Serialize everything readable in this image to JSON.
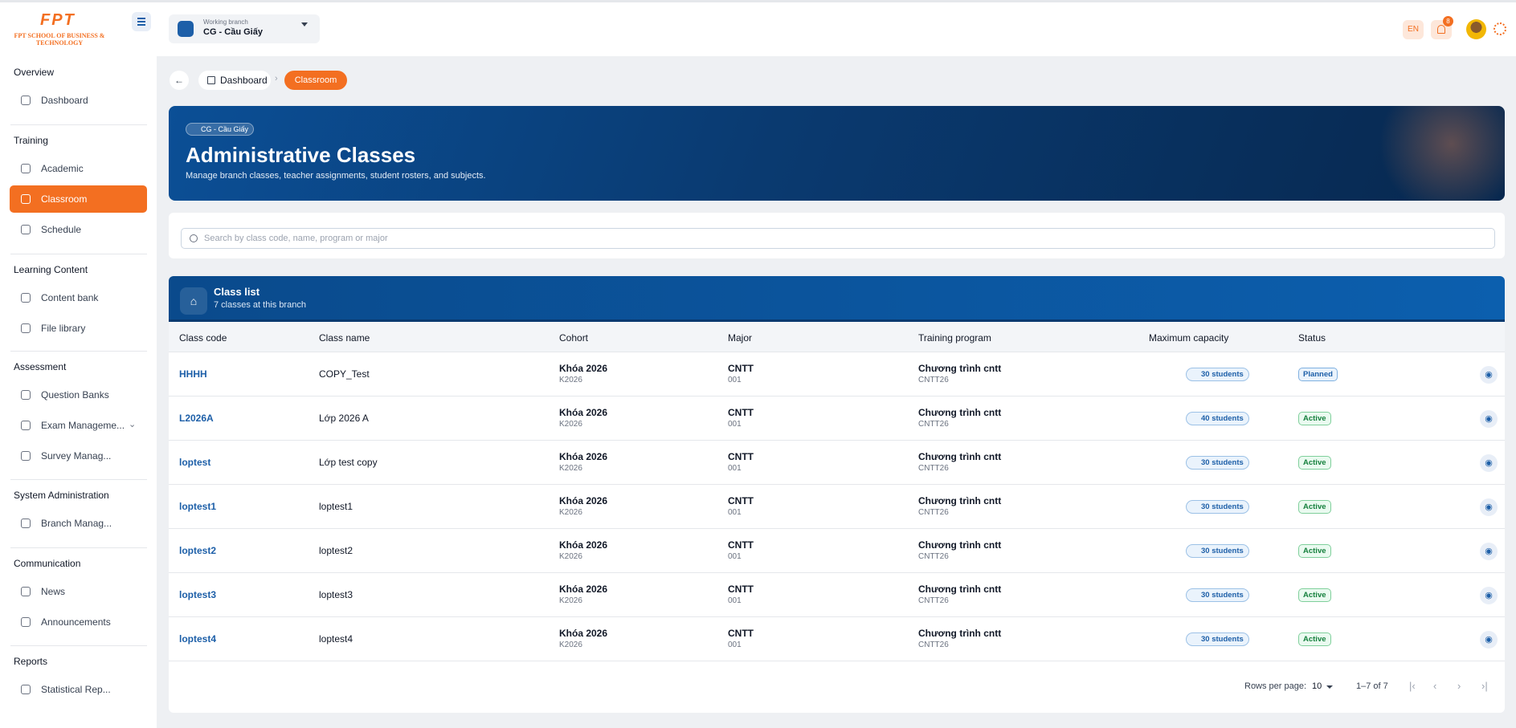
{
  "logo": {
    "mark": "FPT",
    "text": "FPT SCHOOL OF BUSINESS & TECHNOLOGY"
  },
  "sidebar": {
    "sections": [
      {
        "title": "Overview",
        "items": [
          "Dashboard"
        ]
      },
      {
        "title": "Training",
        "items": [
          "Academic",
          "Classroom",
          "Schedule"
        ]
      },
      {
        "title": "Learning Content",
        "items": [
          "Content bank",
          "File library"
        ]
      },
      {
        "title": "Assessment",
        "items": [
          "Question Banks",
          "Exam Manageme...",
          "Survey Manag..."
        ]
      },
      {
        "title": "System Administration",
        "items": [
          "Branch Manag..."
        ]
      },
      {
        "title": "Communication",
        "items": [
          "News",
          "Announcements"
        ]
      },
      {
        "title": "Reports",
        "items": [
          "Statistical Rep..."
        ]
      }
    ]
  },
  "topbar": {
    "branch_label": "Working branch",
    "branch": "CG - Cầu Giấy",
    "language": "EN",
    "notifications": 8
  },
  "breadcrumb": [
    "Dashboard",
    "Classroom"
  ],
  "hero": {
    "badge": "CG - Cầu Giấy",
    "title": "Administrative Classes",
    "subtitle": "Manage branch classes, teacher assignments, student rosters, and subjects."
  },
  "search": {
    "placeholder": "Search by class code, name, program or major"
  },
  "class_list": {
    "title": "Class list",
    "subtitle": "7 classes at this branch"
  },
  "table": {
    "columns": [
      "Class code",
      "Class name",
      "Cohort",
      "Major",
      "Training program",
      "Maximum capacity",
      "Status"
    ],
    "rows": [
      [
        "HHHH",
        "COPY_Test",
        "Khóa 2026",
        "K2026",
        "CNTT",
        "001",
        "Chương trình cntt",
        "CNTT26",
        "30 students",
        "Planned"
      ],
      [
        "L2026A",
        "Lớp 2026 A",
        "Khóa 2026",
        "K2026",
        "CNTT",
        "001",
        "Chương trình cntt",
        "CNTT26",
        "40 students",
        "Active"
      ],
      [
        "loptest",
        "Lớp test copy",
        "Khóa 2026",
        "K2026",
        "CNTT",
        "001",
        "Chương trình cntt",
        "CNTT26",
        "30 students",
        "Active"
      ],
      [
        "loptest1",
        "loptest1",
        "Khóa 2026",
        "K2026",
        "CNTT",
        "001",
        "Chương trình cntt",
        "CNTT26",
        "30 students",
        "Active"
      ],
      [
        "loptest2",
        "loptest2",
        "Khóa 2026",
        "K2026",
        "CNTT",
        "001",
        "Chương trình cntt",
        "CNTT26",
        "30 students",
        "Active"
      ],
      [
        "loptest3",
        "loptest3",
        "Khóa 2026",
        "K2026",
        "CNTT",
        "001",
        "Chương trình cntt",
        "CNTT26",
        "30 students",
        "Active"
      ],
      [
        "loptest4",
        "loptest4",
        "Khóa 2026",
        "K2026",
        "CNTT",
        "001",
        "Chương trình cntt",
        "CNTT26",
        "30 students",
        "Active"
      ]
    ]
  },
  "pagination": {
    "rows_per_page_label": "Rows per page:",
    "rows_per_page": 10,
    "range": "1–7 of 7"
  }
}
